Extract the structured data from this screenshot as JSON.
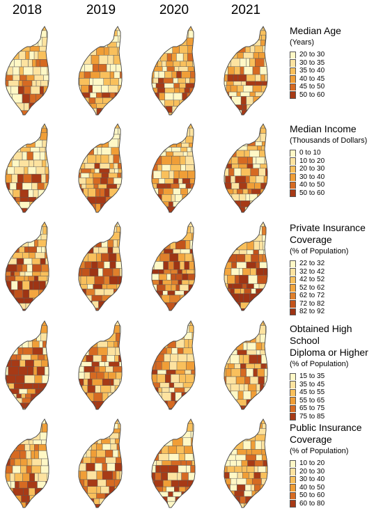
{
  "years": [
    "2018",
    "2019",
    "2020",
    "2021"
  ],
  "panels": [
    {
      "title": "Median Age",
      "subtitle": "(Years)",
      "classes": [
        "20 to 30",
        "30 to 35",
        "35 to 40",
        "40 to 45",
        "45 to 50",
        "50 to 60"
      ],
      "colors": [
        "#fff8c6",
        "#fde3a0",
        "#f9c05c",
        "#f09e37",
        "#d66a22",
        "#a73a16"
      ],
      "skew": [
        0.8,
        0.8,
        1.0,
        1.0
      ],
      "seed": 11
    },
    {
      "title": "Median Income",
      "subtitle": "(Thousands of Dollars)",
      "classes": [
        "0 to 10",
        "10 to 20",
        "20 to 30",
        "30 to 40",
        "40 to 50",
        "50 to 60"
      ],
      "colors": [
        "#fff8c6",
        "#fde3a0",
        "#f9c05c",
        "#f09e37",
        "#d66a22",
        "#a73a16"
      ],
      "skew": [
        1.1,
        1.1,
        1.2,
        1.2
      ],
      "seed": 23
    },
    {
      "title": "Private Insurance\nCoverage",
      "subtitle": "(% of Population)",
      "classes": [
        "22 to 32",
        "32 to 42",
        "42 to 52",
        "52 to 62",
        "62 to 72",
        "72 to 82",
        "82 to 92"
      ],
      "colors": [
        "#fff8c6",
        "#fde3a0",
        "#f9c05c",
        "#f3a63f",
        "#e07f2b",
        "#c2531b",
        "#9e3414"
      ],
      "skew": [
        1.6,
        1.6,
        1.5,
        1.5
      ],
      "seed": 37
    },
    {
      "title": "Obtained High School\nDiploma or Higher",
      "subtitle": "(% of Population)",
      "classes": [
        "15 to 35",
        "35 to 45",
        "45 to 55",
        "55 to 65",
        "65 to 75",
        "75 to 85"
      ],
      "colors": [
        "#fff8c6",
        "#fde3a0",
        "#f9c05c",
        "#f09e37",
        "#d66a22",
        "#a73a16"
      ],
      "skew": [
        1.5,
        1.5,
        1.4,
        1.4
      ],
      "seed": 41
    },
    {
      "title": "Public Insurance\nCoverage",
      "subtitle": "(% of Population)",
      "classes": [
        "10 to 20",
        "20 to 30",
        "30 to 40",
        "40 to 50",
        "50 to 60",
        "60 to 80"
      ],
      "colors": [
        "#fff8c6",
        "#fde3a0",
        "#f9c05c",
        "#f09e37",
        "#d66a22",
        "#a73a16"
      ],
      "skew": [
        1.0,
        1.0,
        1.1,
        0.9
      ],
      "seed": 53
    }
  ]
}
